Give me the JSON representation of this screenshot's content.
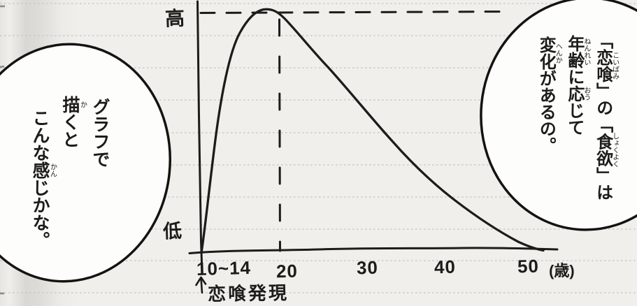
{
  "left_bubble": {
    "plain_text": "グラフで描くとこんな感じかな。",
    "lines": [
      {
        "segments": [
          {
            "t": "グラフで"
          }
        ]
      },
      {
        "segments": [
          {
            "t": "描",
            "rt": "か"
          },
          {
            "t": "くと"
          }
        ]
      },
      {
        "segments": [
          {
            "t": "こんな"
          },
          {
            "t": "感",
            "rt": "かん"
          },
          {
            "t": "じかな。"
          }
        ]
      }
    ]
  },
  "right_bubble": {
    "plain_text": "「恋喰」の「食欲」は年齢に応じて変化があるの。",
    "lines": [
      {
        "segments": [
          {
            "t": "「"
          },
          {
            "t": "恋喰",
            "rt": "こいばみ"
          },
          {
            "t": "」の「"
          },
          {
            "t": "食欲",
            "rt": "しょくよく"
          },
          {
            "t": "」は"
          }
        ]
      },
      {
        "segments": [
          {
            "t": "年齢",
            "rt": "ねんれい"
          },
          {
            "t": "に"
          },
          {
            "t": "応",
            "rt": "おう"
          },
          {
            "t": "じて"
          }
        ]
      },
      {
        "segments": [
          {
            "t": "変化",
            "rt": "へんか"
          },
          {
            "t": "があるの。"
          }
        ]
      }
    ]
  },
  "graph": {
    "y_axis_label_top": "高",
    "y_axis_label_bottom": "低",
    "x_tick_labels": [
      "10~14",
      "20",
      "30",
      "40",
      "50"
    ],
    "x_axis_unit": "(歳)",
    "onset_annotation": "恋喰発現",
    "onset_marker_icon": "arrow-up"
  },
  "chart_data": {
    "type": "line",
    "title": "",
    "xlabel": "(歳)",
    "x_tick_labels": [
      "10~14",
      "20",
      "30",
      "40",
      "50"
    ],
    "y_axis_labels": {
      "high": "高",
      "low": "低"
    },
    "y_scale": "qualitative (低 = 0, 高 = 100)",
    "series": [
      {
        "name": "恋喰の食欲",
        "points_age_vs_level": [
          [
            12,
            0
          ],
          [
            13,
            40
          ],
          [
            14,
            72
          ],
          [
            16,
            95
          ],
          [
            18,
            100
          ],
          [
            20,
            100
          ],
          [
            23,
            85
          ],
          [
            26,
            68
          ],
          [
            30,
            48
          ],
          [
            34,
            30
          ],
          [
            38,
            17
          ],
          [
            42,
            9
          ],
          [
            46,
            3
          ],
          [
            50,
            0
          ]
        ]
      }
    ],
    "reference_lines": [
      {
        "type": "dashed-horizontal",
        "level": "peak (高)"
      },
      {
        "type": "dashed-vertical",
        "age": 20
      }
    ],
    "annotations": [
      {
        "age_range": "10~14",
        "label": "恋喰発現",
        "marker": "↑"
      }
    ],
    "layout": {
      "grid": "ruled notebook lines",
      "legend": "none"
    }
  },
  "colors": {
    "paper": "#f0efeb",
    "ink": "#1d1c1a",
    "ruled_line": "#c7c5c0",
    "bubble_fill": "#fdfdfc",
    "gutter_shadow": "#d9d8d4"
  }
}
